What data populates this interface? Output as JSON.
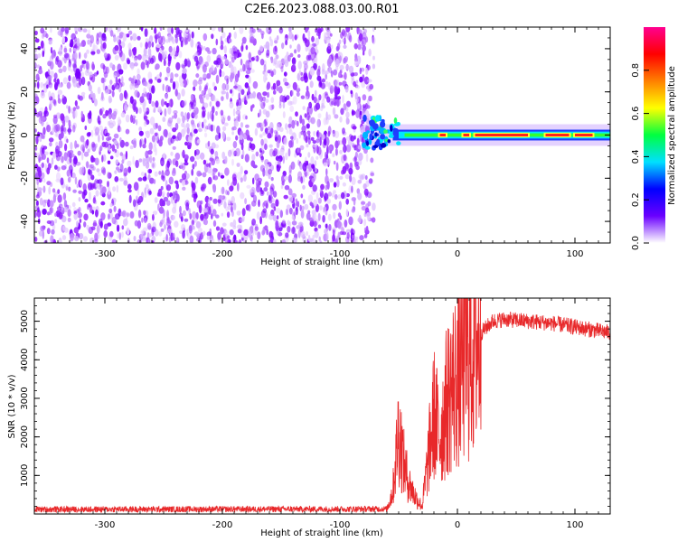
{
  "title": "C2E6.2023.088.03.00.R01",
  "chart_data": [
    {
      "type": "heatmap",
      "xlabel": "Height of straight line (km)",
      "ylabel": "Frequency (Hz)",
      "xlim": [
        -360,
        130
      ],
      "ylim": [
        -50,
        50
      ],
      "xticks": [
        -300,
        -200,
        -100,
        0,
        100
      ],
      "yticks": [
        -40,
        -20,
        0,
        20,
        40
      ],
      "grid": false,
      "noise_region_x": [
        -360,
        -75
      ],
      "signal_band": {
        "x": [
          -80,
          130
        ],
        "y": [
          -2,
          2
        ]
      },
      "high_amplitude_x": [
        [
          -15,
          -10
        ],
        [
          5,
          10
        ],
        [
          15,
          60
        ],
        [
          75,
          95
        ],
        [
          100,
          115
        ]
      ],
      "colorbar": {
        "label": "Normalized spectral amplitude",
        "ticks": [
          "0.0",
          "0.2",
          "0.4",
          "0.6",
          "0.8"
        ],
        "range": [
          0,
          1
        ],
        "colormap": [
          "#ffffff",
          "#6a00ff",
          "#0000ff",
          "#00e0ff",
          "#00ff40",
          "#ffff00",
          "#ff8000",
          "#ff0000",
          "#ff0090"
        ]
      }
    },
    {
      "type": "line",
      "xlabel": "Height of straight line (km)",
      "ylabel": "SNR (10 * v/v)",
      "xlim": [
        -360,
        130
      ],
      "ylim": [
        0,
        5600
      ],
      "xticks": [
        -300,
        -200,
        -100,
        0,
        100
      ],
      "yticks": [
        1000,
        2000,
        3000,
        4000,
        5000
      ],
      "color": "#e8282a",
      "grid": false,
      "profile_x": [
        -360,
        -60,
        -55,
        -50,
        -45,
        -40,
        -35,
        -30,
        -25,
        -20,
        -15,
        -10,
        -5,
        0,
        5,
        10,
        15,
        20,
        30,
        40,
        60,
        80,
        100,
        130
      ],
      "profile_y": [
        120,
        130,
        600,
        2200,
        1200,
        700,
        400,
        200,
        1400,
        2600,
        2000,
        2800,
        3300,
        3500,
        4000,
        4100,
        4500,
        4700,
        5000,
        5050,
        5000,
        4950,
        4850,
        4700
      ]
    }
  ]
}
